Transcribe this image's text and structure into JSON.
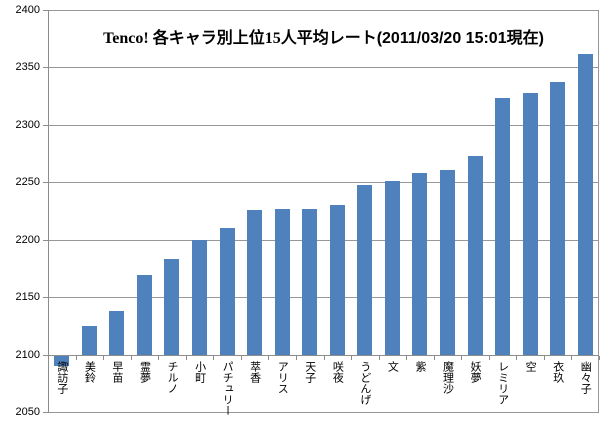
{
  "chart_data": {
    "type": "bar",
    "title_main": "Tenco! 各キャラ別上位15人平均レート",
    "title_date": "(2011/03/20 15:01現在)",
    "categories": [
      "諏訪子",
      "美鈴",
      "早苗",
      "霊夢",
      "チルノ",
      "小町",
      "パチュリー",
      "萃香",
      "アリス",
      "天子",
      "咲夜",
      "うどんげ",
      "文",
      "紫",
      "魔理沙",
      "妖夢",
      "レミリア",
      "空",
      "衣玖",
      "幽々子"
    ],
    "values": [
      2090,
      2125,
      2138,
      2169,
      2183,
      2200,
      2210,
      2226,
      2227,
      2227,
      2230,
      2248,
      2251,
      2258,
      2261,
      2273,
      2323,
      2328,
      2337,
      2362
    ],
    "title": "Tenco! 各キャラ別上位15人平均レート(2011/03/20 15:01現在)",
    "xlabel": "",
    "ylabel": "",
    "ylim": [
      2050,
      2400
    ],
    "yticks": [
      2400,
      2350,
      2300,
      2250,
      2200,
      2150,
      2100,
      2050
    ],
    "x_axis_crosses_at": 2100,
    "grid": "horizontal",
    "legend": "none",
    "bar_color": "#4F81BD",
    "grid_color": "#979797",
    "axis_color": "#8C8C8C",
    "text_color": "#000000",
    "background_color": "#FFFFFF"
  }
}
